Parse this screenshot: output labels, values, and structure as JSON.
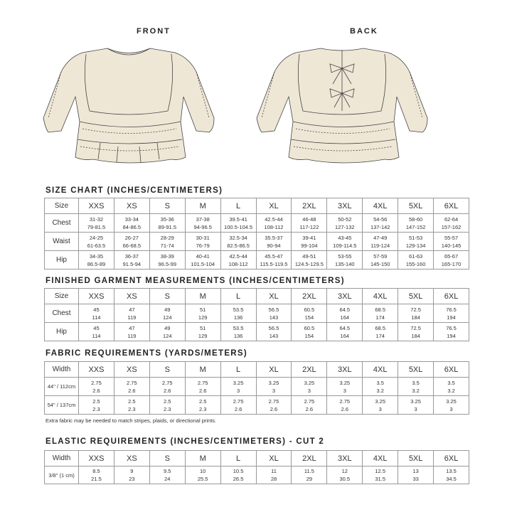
{
  "views": {
    "front": "FRONT",
    "back": "BACK"
  },
  "colors": {
    "garment_fill": "#efe7d6",
    "outline": "#444444",
    "grid": "#999999"
  },
  "sizes": [
    "XXS",
    "XS",
    "S",
    "M",
    "L",
    "XL",
    "2XL",
    "3XL",
    "4XL",
    "5XL",
    "6XL"
  ],
  "size_chart": {
    "title": "SIZE CHART (INCHES/CENTIMETERS)",
    "header_label": "Size",
    "rows": [
      {
        "label": "Chest",
        "inches": [
          "31-32",
          "33-34",
          "35-36",
          "37-38",
          "39.5-41",
          "42.5-44",
          "46-48",
          "50-52",
          "54-56",
          "58-60",
          "62-64"
        ],
        "cm": [
          "79-81.5",
          "84-86.5",
          "89-91.5",
          "94-96.5",
          "100.5-104.5",
          "108-112",
          "117-122",
          "127-132",
          "137-142",
          "147-152",
          "157-162"
        ]
      },
      {
        "label": "Waist",
        "inches": [
          "24-25",
          "26-27",
          "28-29",
          "30-31",
          "32.5-34",
          "35.5-37",
          "39-41",
          "43-45",
          "47-49",
          "51-53",
          "55-57"
        ],
        "cm": [
          "61-63.5",
          "66-68.5",
          "71-74",
          "76-79",
          "82.5-86.5",
          "90-94",
          "99-104",
          "109-114.5",
          "119-124",
          "129-134",
          "140-145"
        ]
      },
      {
        "label": "Hip",
        "inches": [
          "34-35",
          "36-37",
          "38-39",
          "40-41",
          "42.5-44",
          "45.5-47",
          "49-51",
          "53-55",
          "57-59",
          "61-63",
          "65-67"
        ],
        "cm": [
          "86.5-89",
          "91.5-94",
          "96.5-99",
          "101.5-104",
          "108-112",
          "115.5-119.5",
          "124.5-129.5",
          "135-140",
          "145-150",
          "155-160",
          "165-170"
        ]
      }
    ]
  },
  "finished": {
    "title": "FINISHED GARMENT MEASUREMENTS (INCHES/CENTIMETERS)",
    "header_label": "Size",
    "rows": [
      {
        "label": "Chest",
        "inches": [
          "45",
          "47",
          "49",
          "51",
          "53.5",
          "56.5",
          "60.5",
          "64.5",
          "68.5",
          "72.5",
          "76.5"
        ],
        "cm": [
          "114",
          "119",
          "124",
          "129",
          "136",
          "143",
          "154",
          "164",
          "174",
          "184",
          "194"
        ]
      },
      {
        "label": "Hip",
        "inches": [
          "45",
          "47",
          "49",
          "51",
          "53.5",
          "56.5",
          "60.5",
          "64.5",
          "68.5",
          "72.5",
          "76.5"
        ],
        "cm": [
          "114",
          "119",
          "124",
          "129",
          "136",
          "143",
          "154",
          "164",
          "174",
          "184",
          "194"
        ]
      }
    ]
  },
  "fabric": {
    "title": "FABRIC REQUIREMENTS (YARDS/METERS)",
    "header_label": "Width",
    "rows": [
      {
        "label": "44\" / 112cm",
        "inches": [
          "2.75",
          "2.75",
          "2.75",
          "2.75",
          "3.25",
          "3.25",
          "3.25",
          "3.25",
          "3.5",
          "3.5",
          "3.5"
        ],
        "cm": [
          "2.6",
          "2.6",
          "2.6",
          "2.6",
          "3",
          "3",
          "3",
          "3",
          "3.2",
          "3.2",
          "3.2"
        ]
      },
      {
        "label": "54\" / 137cm",
        "inches": [
          "2.5",
          "2.5",
          "2.5",
          "2.5",
          "2.75",
          "2.75",
          "2.75",
          "2.75",
          "3.25",
          "3.25",
          "3.25"
        ],
        "cm": [
          "2.3",
          "2.3",
          "2.3",
          "2.3",
          "2.6",
          "2.6",
          "2.6",
          "2.6",
          "3",
          "3",
          "3"
        ]
      }
    ],
    "note": "Extra fabric may be needed to match stripes, plaids, or directional prints."
  },
  "elastic": {
    "title": "ELASTIC REQUIREMENTS (INCHES/CENTIMETERS) - CUT 2",
    "header_label": "Width",
    "rows": [
      {
        "label": "3/8\" (1 cm)",
        "inches": [
          "8.5",
          "9",
          "9.5",
          "10",
          "10.5",
          "11",
          "11.5",
          "12",
          "12.5",
          "13",
          "13.5"
        ],
        "cm": [
          "21.5",
          "23",
          "24",
          "25.5",
          "26.5",
          "28",
          "29",
          "30.5",
          "31.5",
          "33",
          "34.5"
        ]
      }
    ]
  }
}
